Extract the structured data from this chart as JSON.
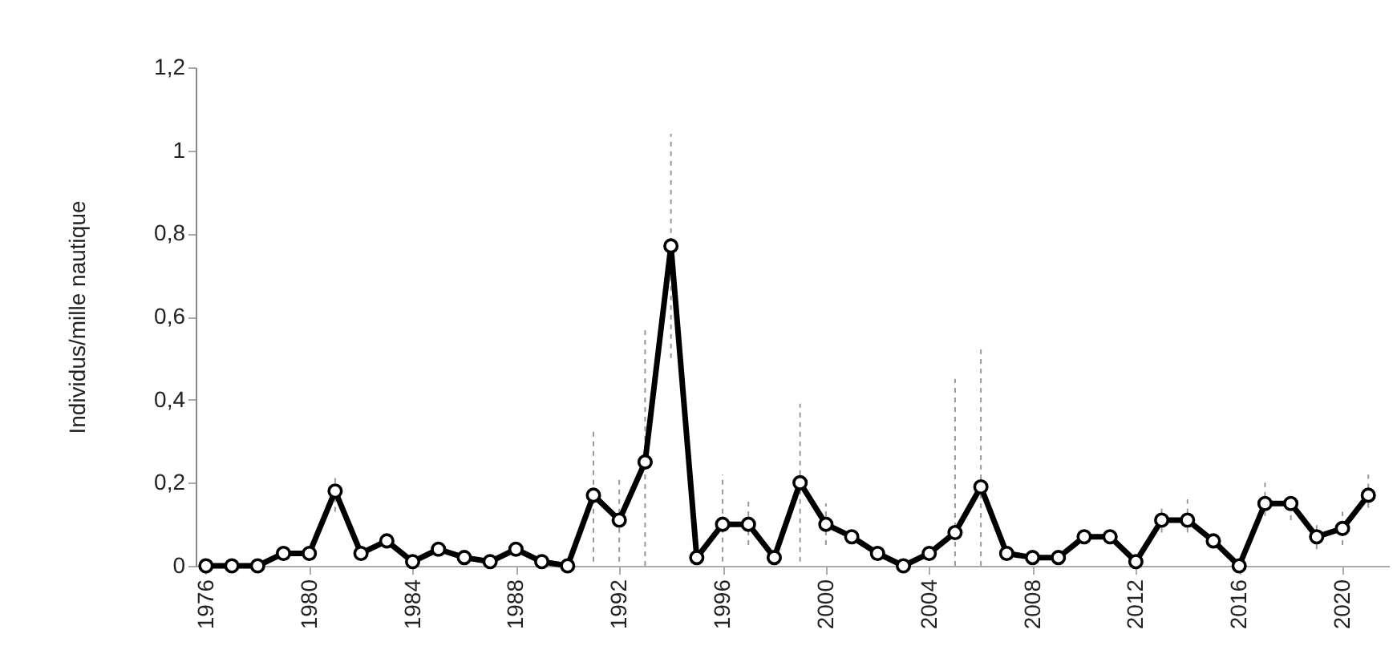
{
  "chart_data": {
    "type": "line",
    "ylabel": "Individus/mille nautique",
    "x": [
      1976,
      1977,
      1978,
      1979,
      1980,
      1981,
      1982,
      1983,
      1984,
      1985,
      1986,
      1987,
      1988,
      1989,
      1990,
      1991,
      1992,
      1993,
      1994,
      1995,
      1996,
      1997,
      1998,
      1999,
      2000,
      2001,
      2002,
      2003,
      2004,
      2005,
      2006,
      2007,
      2008,
      2009,
      2010,
      2011,
      2012,
      2013,
      2014,
      2015,
      2016,
      2017,
      2018,
      2019,
      2020,
      2021
    ],
    "series": [
      {
        "color": "#000000",
        "values": [
          0,
          0,
          0,
          0.03,
          0.03,
          0.18,
          0.03,
          0.06,
          0.01,
          0.04,
          0.02,
          0.01,
          0.04,
          0.01,
          0,
          0.17,
          0.11,
          0.25,
          0.77,
          0.02,
          0.1,
          0.1,
          0.02,
          0.2,
          0.1,
          0.07,
          0.03,
          0,
          0.03,
          0.08,
          0.19,
          0.03,
          0.02,
          0.02,
          0.07,
          0.07,
          0.01,
          0.11,
          0.11,
          0.06,
          0,
          0.15,
          0.15,
          0.07,
          0.09,
          0.17
        ],
        "errors": [
          null,
          null,
          null,
          null,
          null,
          [
            0.13,
            0.22
          ],
          null,
          null,
          null,
          null,
          null,
          null,
          null,
          null,
          null,
          [
            0.01,
            0.33
          ],
          [
            0.01,
            0.21
          ],
          [
            0,
            0.57
          ],
          [
            0.5,
            1.04
          ],
          null,
          [
            0.01,
            0.22
          ],
          [
            0.05,
            0.16
          ],
          null,
          [
            0.01,
            0.39
          ],
          [
            0.05,
            0.15
          ],
          null,
          null,
          null,
          null,
          [
            0,
            0.45
          ],
          [
            0,
            0.53
          ],
          null,
          null,
          null,
          null,
          null,
          null,
          [
            0.08,
            0.14
          ],
          [
            0.08,
            0.16
          ],
          null,
          null,
          [
            0.12,
            0.2
          ],
          [
            0.11,
            0.18
          ],
          [
            0.04,
            0.1
          ],
          [
            0.05,
            0.13
          ],
          [
            0.14,
            0.22
          ]
        ]
      }
    ],
    "xlim": [
      1975.6,
      2021.8
    ],
    "xticks": [
      1976,
      1980,
      1984,
      1988,
      1992,
      1996,
      2000,
      2004,
      2008,
      2012,
      2016,
      2020
    ],
    "ylim": [
      0,
      1.2
    ],
    "yticks": [
      0,
      {
        "value": 0.2,
        "label": "0,2"
      },
      {
        "value": 0.4,
        "label": "0,4"
      },
      {
        "value": 0.6,
        "label": "0,6"
      },
      {
        "value": 0.8,
        "label": "0,8"
      },
      1,
      {
        "value": 1.2,
        "label": "1,2"
      }
    ],
    "grid": false,
    "marker": "circle",
    "line_style": "solid"
  }
}
